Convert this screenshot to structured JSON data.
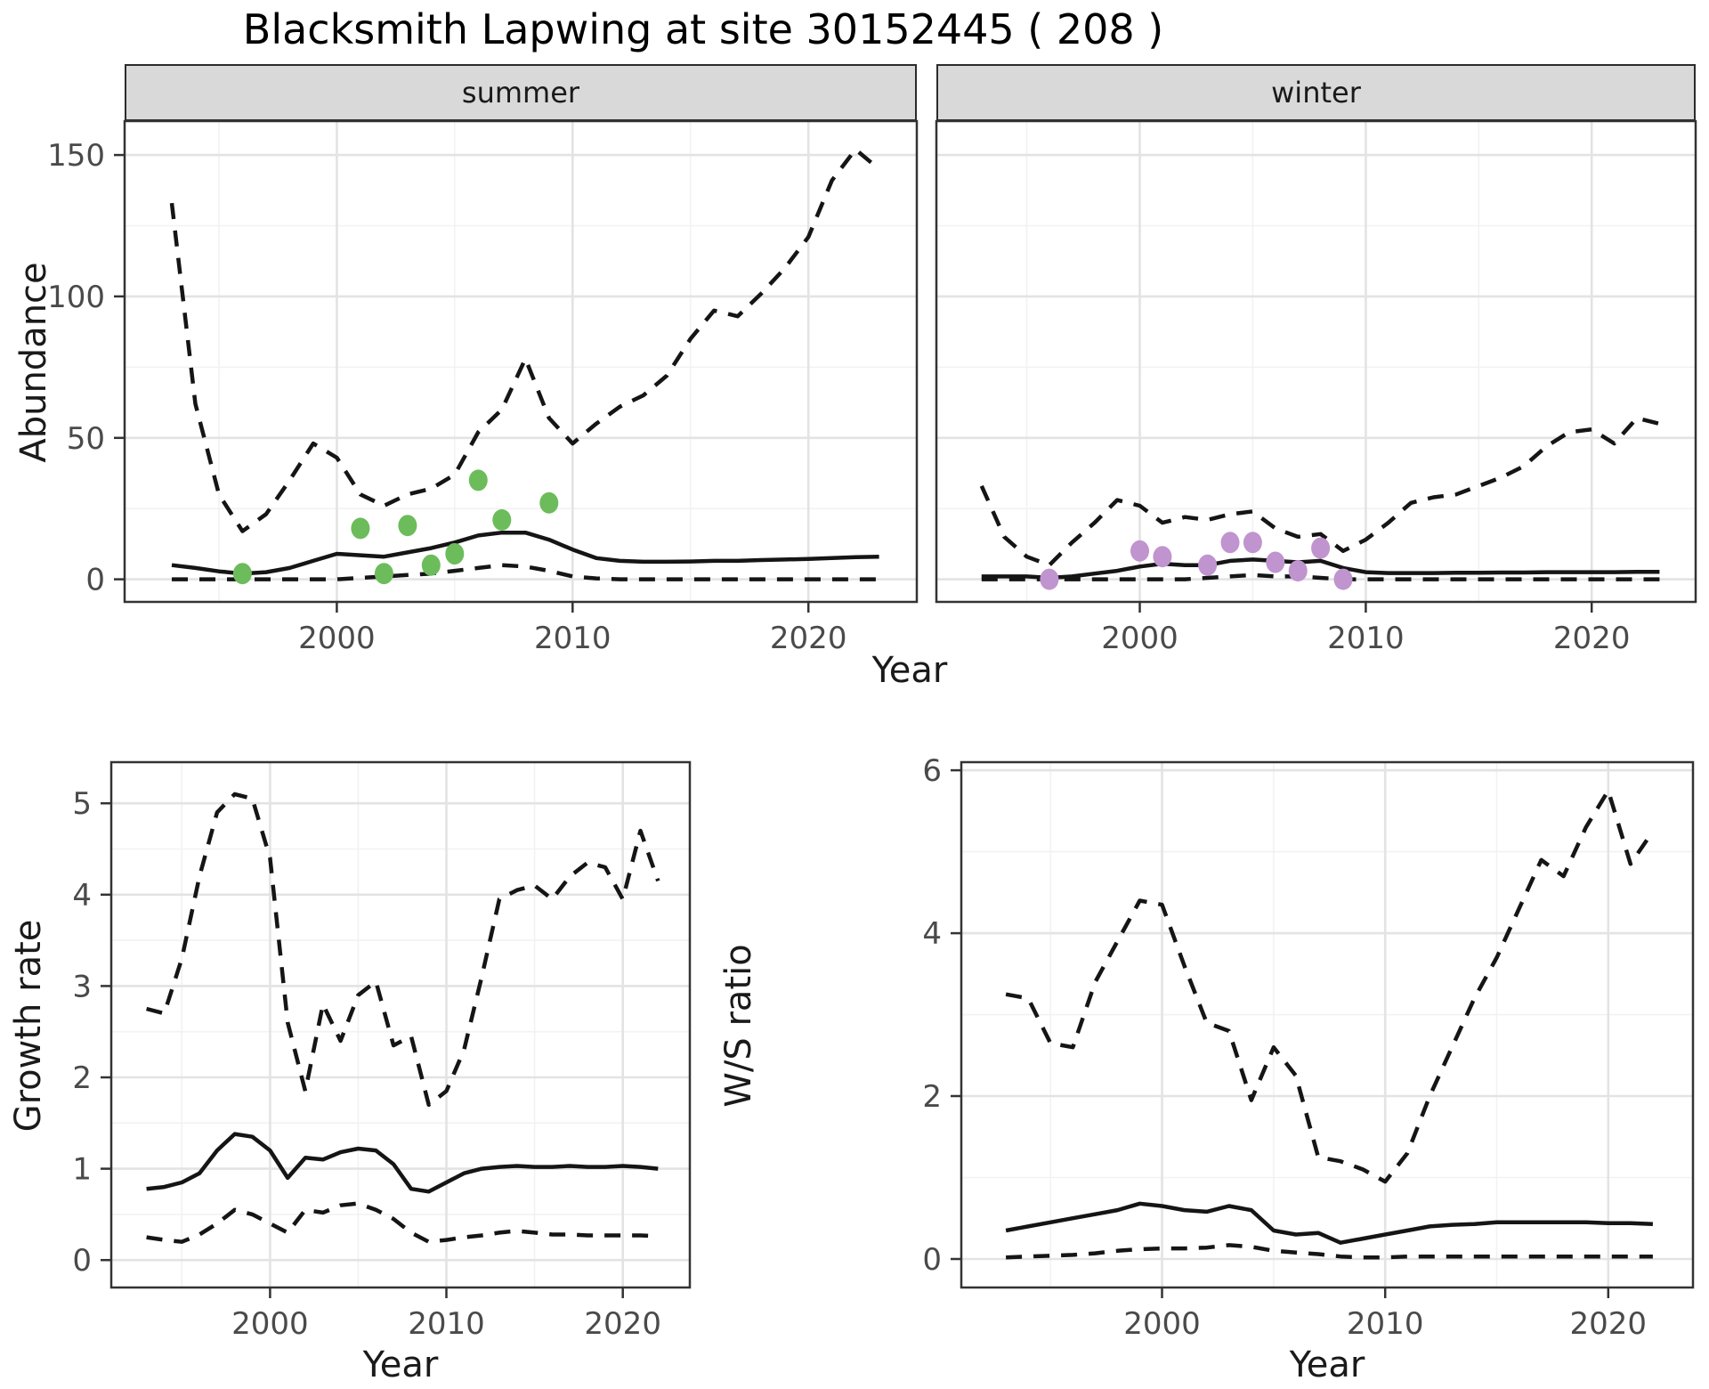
{
  "title": "Blacksmith Lapwing at site 30152445 ( 208 )",
  "labels": {
    "abundance": "Abundance",
    "year": "Year",
    "growth_rate": "Growth rate",
    "ws_ratio": "W/S ratio"
  },
  "colors": {
    "summer_points": "#6cbc5b",
    "winter_points": "#c094ce",
    "line": "#151515",
    "grid_major": "#e3e3e3",
    "grid_minor": "#f2f2f2",
    "strip_bg": "#d9d9d9",
    "panel_border": "#333333",
    "tick_text": "#4a4a4a"
  },
  "chart_data": [
    {
      "id": "abundance-summer",
      "type": "line",
      "facet": "summer",
      "xlabel": "Year",
      "ylabel": "Abundance",
      "xlim": [
        1991,
        2024.6
      ],
      "ylim": [
        -8,
        162
      ],
      "xticks": [
        2000,
        2010,
        2020
      ],
      "xticks_minor": [
        1995,
        2005,
        2015
      ],
      "yticks": [
        0,
        50,
        100,
        150
      ],
      "yticks_minor": [
        25,
        75,
        125
      ],
      "x": [
        1993,
        1994,
        1995,
        1996,
        1997,
        1998,
        1999,
        2000,
        2001,
        2002,
        2003,
        2004,
        2005,
        2006,
        2007,
        2008,
        2009,
        2010,
        2011,
        2012,
        2013,
        2014,
        2015,
        2016,
        2017,
        2018,
        2019,
        2020,
        2021,
        2022,
        2023
      ],
      "series": [
        {
          "name": "upper-ci",
          "style": "dashed",
          "values": [
            133,
            62,
            30,
            17,
            23,
            35,
            48,
            43,
            30,
            26,
            30,
            32,
            37,
            52,
            60,
            78,
            57,
            48,
            55,
            61,
            65,
            72,
            85,
            95,
            93,
            101,
            110,
            121,
            141,
            152,
            145
          ]
        },
        {
          "name": "median",
          "style": "solid",
          "values": [
            5,
            4,
            2.8,
            2,
            2.5,
            4,
            6.5,
            9,
            8.5,
            8,
            9.5,
            11,
            13,
            15.5,
            16.5,
            16.5,
            14,
            10.5,
            7.5,
            6.5,
            6.2,
            6.2,
            6.3,
            6.5,
            6.5,
            6.8,
            7,
            7.2,
            7.5,
            7.8,
            8
          ]
        },
        {
          "name": "lower-ci",
          "style": "dashed",
          "values": [
            0,
            0,
            0,
            0,
            0,
            0,
            0,
            0,
            0.5,
            1,
            1.5,
            2,
            3,
            4,
            5,
            4.5,
            3,
            1,
            0.3,
            0,
            0,
            0,
            0,
            0,
            0,
            0,
            0,
            0,
            0,
            0,
            0
          ]
        }
      ],
      "points": {
        "name": "observed-counts-summer",
        "color": "#6cbc5b",
        "data": [
          [
            1996,
            2
          ],
          [
            2001,
            18
          ],
          [
            2002,
            2
          ],
          [
            2003,
            19
          ],
          [
            2004,
            5
          ],
          [
            2005,
            9
          ],
          [
            2006,
            35
          ],
          [
            2007,
            21
          ],
          [
            2009,
            27
          ]
        ]
      }
    },
    {
      "id": "abundance-winter",
      "type": "line",
      "facet": "winter",
      "xlabel": "Year",
      "ylabel": "Abundance",
      "xlim": [
        1991,
        2024.6
      ],
      "ylim": [
        -8,
        162
      ],
      "xticks": [
        2000,
        2010,
        2020
      ],
      "xticks_minor": [
        1995,
        2005,
        2015
      ],
      "yticks": [
        0,
        50,
        100,
        150
      ],
      "yticks_minor": [
        25,
        75,
        125
      ],
      "x": [
        1993,
        1994,
        1995,
        1996,
        1997,
        1998,
        1999,
        2000,
        2001,
        2002,
        2003,
        2004,
        2005,
        2006,
        2007,
        2008,
        2009,
        2010,
        2011,
        2012,
        2013,
        2014,
        2015,
        2016,
        2017,
        2018,
        2019,
        2020,
        2021,
        2022,
        2023
      ],
      "series": [
        {
          "name": "upper-ci",
          "style": "dashed",
          "values": [
            33,
            15,
            8,
            5,
            13,
            20,
            28,
            26,
            20,
            22,
            21,
            23,
            24,
            18,
            15,
            16,
            10,
            14,
            20,
            27,
            29,
            30,
            33,
            36,
            40,
            47,
            52,
            53,
            48,
            57,
            55
          ]
        },
        {
          "name": "median",
          "style": "solid",
          "values": [
            1,
            1,
            1,
            0.5,
            1,
            2,
            3,
            4.5,
            5.5,
            5,
            5,
            6.5,
            7,
            6.5,
            6,
            6.5,
            4,
            2.5,
            2.2,
            2.2,
            2.2,
            2.3,
            2.3,
            2.4,
            2.4,
            2.5,
            2.5,
            2.5,
            2.5,
            2.6,
            2.6
          ]
        },
        {
          "name": "lower-ci",
          "style": "dashed",
          "values": [
            0,
            0,
            0,
            0,
            0,
            0,
            0,
            0,
            0,
            0,
            0.5,
            1,
            1.5,
            1,
            1,
            0.5,
            0,
            0,
            0,
            0,
            0,
            0,
            0,
            0,
            0,
            0,
            0,
            0,
            0,
            0,
            0
          ]
        }
      ],
      "points": {
        "name": "observed-counts-winter",
        "color": "#c094ce",
        "data": [
          [
            1996,
            0
          ],
          [
            2000,
            10
          ],
          [
            2001,
            8
          ],
          [
            2003,
            5
          ],
          [
            2004,
            13
          ],
          [
            2005,
            13
          ],
          [
            2006,
            6
          ],
          [
            2007,
            3
          ],
          [
            2008,
            11
          ],
          [
            2009,
            0
          ]
        ]
      }
    },
    {
      "id": "growth-rate",
      "type": "line",
      "xlabel": "Year",
      "ylabel": "Growth rate",
      "xlim": [
        1991,
        2023.8
      ],
      "ylim": [
        -0.3,
        5.45
      ],
      "xticks": [
        2000,
        2010,
        2020
      ],
      "xticks_minor": [
        1995,
        2005,
        2015
      ],
      "yticks": [
        0,
        1,
        2,
        3,
        4,
        5
      ],
      "yticks_minor": [
        0.5,
        1.5,
        2.5,
        3.5,
        4.5
      ],
      "x": [
        1993,
        1994,
        1995,
        1996,
        1997,
        1998,
        1999,
        2000,
        2001,
        2002,
        2003,
        2004,
        2005,
        2006,
        2007,
        2008,
        2009,
        2010,
        2011,
        2012,
        2013,
        2014,
        2015,
        2016,
        2017,
        2018,
        2019,
        2020,
        2021,
        2022
      ],
      "series": [
        {
          "name": "upper-ci",
          "style": "dashed",
          "values": [
            2.75,
            2.7,
            3.3,
            4.2,
            4.9,
            5.1,
            5.05,
            4.4,
            2.6,
            1.85,
            2.8,
            2.4,
            2.9,
            3.05,
            2.35,
            2.45,
            1.7,
            1.85,
            2.3,
            3.1,
            3.95,
            4.05,
            4.1,
            3.95,
            4.2,
            4.35,
            4.3,
            3.95,
            4.7,
            4.15
          ]
        },
        {
          "name": "median",
          "style": "solid",
          "values": [
            0.78,
            0.8,
            0.85,
            0.95,
            1.2,
            1.38,
            1.35,
            1.2,
            0.9,
            1.12,
            1.1,
            1.18,
            1.22,
            1.2,
            1.05,
            0.78,
            0.75,
            0.85,
            0.95,
            1.0,
            1.02,
            1.03,
            1.02,
            1.02,
            1.03,
            1.02,
            1.02,
            1.03,
            1.02,
            1.0
          ]
        },
        {
          "name": "lower-ci",
          "style": "dashed",
          "values": [
            0.25,
            0.22,
            0.2,
            0.28,
            0.4,
            0.55,
            0.5,
            0.4,
            0.3,
            0.55,
            0.52,
            0.6,
            0.62,
            0.55,
            0.45,
            0.3,
            0.2,
            0.22,
            0.25,
            0.27,
            0.3,
            0.32,
            0.3,
            0.28,
            0.28,
            0.27,
            0.27,
            0.27,
            0.27,
            0.26
          ]
        }
      ]
    },
    {
      "id": "ws-ratio",
      "type": "line",
      "xlabel": "Year",
      "ylabel": "W/S ratio",
      "xlim": [
        1991,
        2023.8
      ],
      "ylim": [
        -0.35,
        6.1
      ],
      "xticks": [
        2000,
        2010,
        2020
      ],
      "xticks_minor": [
        1995,
        2005,
        2015
      ],
      "yticks": [
        0,
        2,
        4,
        6
      ],
      "yticks_minor": [
        1,
        3,
        5
      ],
      "x": [
        1993,
        1994,
        1995,
        1996,
        1997,
        1998,
        1999,
        2000,
        2001,
        2002,
        2003,
        2004,
        2005,
        2006,
        2007,
        2008,
        2009,
        2010,
        2011,
        2012,
        2013,
        2014,
        2015,
        2016,
        2017,
        2018,
        2019,
        2020,
        2021,
        2022
      ],
      "series": [
        {
          "name": "upper-ci",
          "style": "dashed",
          "values": [
            3.25,
            3.2,
            2.65,
            2.6,
            3.4,
            3.9,
            4.4,
            4.35,
            3.6,
            2.9,
            2.8,
            1.95,
            2.6,
            2.25,
            1.25,
            1.2,
            1.1,
            0.95,
            1.3,
            2.0,
            2.6,
            3.2,
            3.7,
            4.3,
            4.9,
            4.7,
            5.3,
            5.75,
            4.85,
            5.25
          ]
        },
        {
          "name": "median",
          "style": "solid",
          "values": [
            0.35,
            0.4,
            0.45,
            0.5,
            0.55,
            0.6,
            0.68,
            0.65,
            0.6,
            0.58,
            0.65,
            0.6,
            0.35,
            0.3,
            0.32,
            0.2,
            0.25,
            0.3,
            0.35,
            0.4,
            0.42,
            0.43,
            0.45,
            0.45,
            0.45,
            0.45,
            0.45,
            0.44,
            0.44,
            0.43
          ]
        },
        {
          "name": "lower-ci",
          "style": "dashed",
          "values": [
            0.02,
            0.03,
            0.04,
            0.05,
            0.07,
            0.1,
            0.12,
            0.13,
            0.13,
            0.14,
            0.17,
            0.15,
            0.1,
            0.08,
            0.06,
            0.03,
            0.02,
            0.02,
            0.03,
            0.03,
            0.03,
            0.03,
            0.03,
            0.03,
            0.03,
            0.03,
            0.03,
            0.03,
            0.03,
            0.03
          ]
        }
      ]
    }
  ]
}
